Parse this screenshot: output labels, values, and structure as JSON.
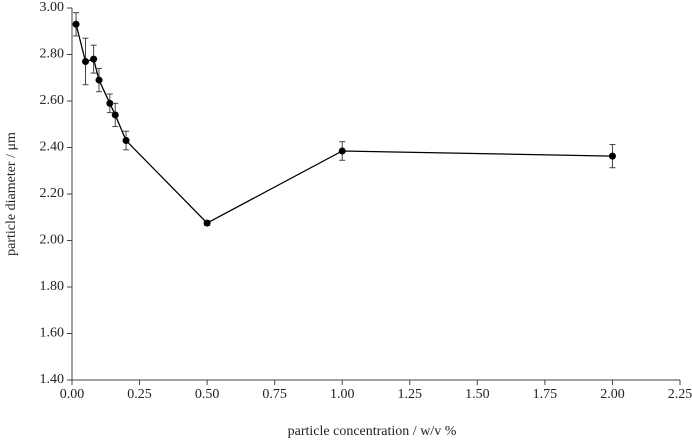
{
  "chart_data": {
    "type": "scatter-line",
    "xlabel": "particle concentration / w/v %",
    "ylabel": "particle diameter / μm",
    "series": [
      {
        "color": "#000000",
        "x": [
          0.015,
          0.05,
          0.08,
          0.1,
          0.14,
          0.16,
          0.2,
          0.5,
          1.0,
          2.0
        ],
        "values": [
          2.93,
          2.77,
          2.78,
          2.69,
          2.59,
          2.54,
          2.43,
          2.075,
          2.385,
          2.363
        ],
        "errors": [
          0.05,
          0.1,
          0.06,
          0.05,
          0.04,
          0.05,
          0.04,
          0.01,
          0.04,
          0.05
        ]
      }
    ],
    "xlim": [
      0,
      2.25
    ],
    "xticks": [
      {
        "value": 0,
        "label": "0.00"
      },
      {
        "value": 0.25,
        "label": "0.25"
      },
      {
        "value": 0.5,
        "label": "0.50"
      },
      {
        "value": 0.75,
        "label": "0.75"
      },
      {
        "value": 1,
        "label": "1.00"
      },
      {
        "value": 1.25,
        "label": "1.25"
      },
      {
        "value": 1.5,
        "label": "1.50"
      },
      {
        "value": 1.75,
        "label": "1.75"
      },
      {
        "value": 2,
        "label": "2.00"
      },
      {
        "value": 2.25,
        "label": "2.25"
      }
    ],
    "ylim": [
      1.4,
      3.0
    ],
    "yticks": [
      {
        "value": 1.4,
        "label": "1.40"
      },
      {
        "value": 1.6,
        "label": "1.60"
      },
      {
        "value": 1.8,
        "label": "1.80"
      },
      {
        "value": 2.0,
        "label": "2.00"
      },
      {
        "value": 2.2,
        "label": "2.20"
      },
      {
        "value": 2.4,
        "label": "2.40"
      },
      {
        "value": 2.6,
        "label": "2.60"
      },
      {
        "value": 2.8,
        "label": "2.80"
      },
      {
        "value": 3.0,
        "label": "3.00"
      }
    ]
  }
}
